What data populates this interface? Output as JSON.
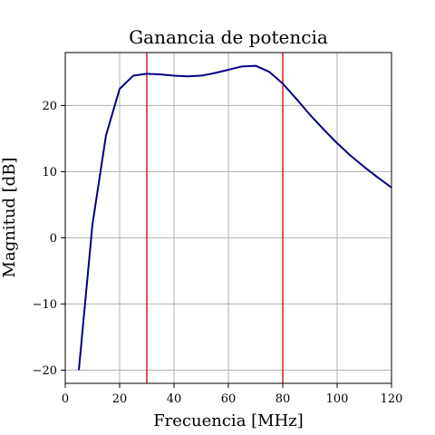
{
  "chart_data": {
    "type": "line",
    "title": "Ganancia de potencia",
    "xlabel": "Frecuencia [MHz]",
    "ylabel": "Magnitud [dB]",
    "xlim": [
      0,
      120
    ],
    "ylim": [
      -22,
      28
    ],
    "xticks": [
      0,
      20,
      40,
      60,
      80,
      100,
      120
    ],
    "yticks": [
      -20,
      -10,
      0,
      10,
      20
    ],
    "grid": true,
    "series": [
      {
        "color": "#000080",
        "x": [
          5,
          10,
          15,
          20,
          25,
          30,
          35,
          40,
          45,
          50,
          55,
          60,
          65,
          70,
          75,
          80,
          85,
          90,
          95,
          100,
          105,
          110,
          115,
          120
        ],
        "y": [
          -20,
          2,
          15.5,
          22.5,
          24.5,
          24.8,
          24.7,
          24.5,
          24.4,
          24.5,
          24.9,
          25.4,
          25.9,
          26.0,
          25.1,
          23.3,
          21.0,
          18.6,
          16.4,
          14.3,
          12.4,
          10.7,
          9.1,
          7.6
        ]
      }
    ],
    "vlines": [
      {
        "x": 30,
        "color": "#cc0000"
      },
      {
        "x": 80,
        "color": "#cc0000"
      }
    ]
  }
}
